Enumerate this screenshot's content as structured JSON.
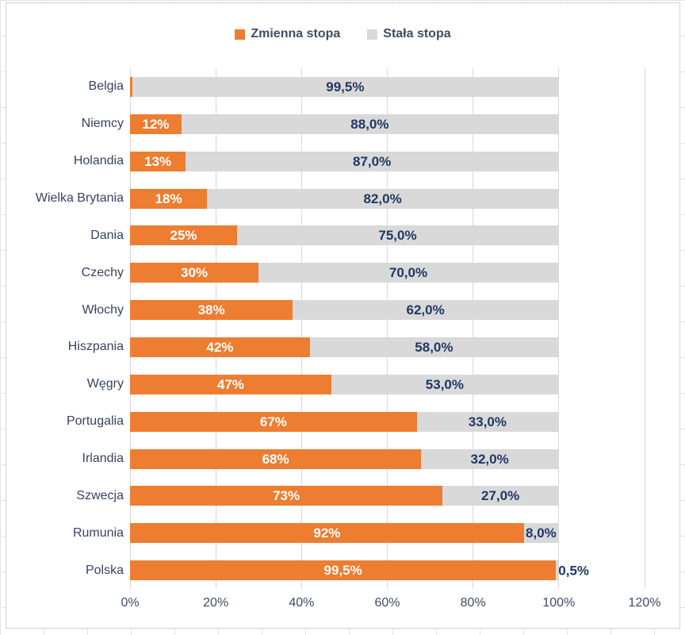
{
  "legend": {
    "items": [
      {
        "label": "Zmienna stopa",
        "color": "#ED7D31"
      },
      {
        "label": "Stała stopa",
        "color": "#D9D9D9"
      }
    ],
    "position": "top-center"
  },
  "chart_data": {
    "type": "bar",
    "orientation": "horizontal",
    "stacked": true,
    "title": "",
    "xlabel": "",
    "ylabel": "",
    "xlim": [
      0,
      120
    ],
    "grid": true,
    "x_ticks": [
      "0%",
      "20%",
      "40%",
      "60%",
      "80%",
      "100%",
      "120%"
    ],
    "categories": [
      "Belgia",
      "Niemcy",
      "Holandia",
      "Wielka Brytania",
      "Dania",
      "Czechy",
      "Włochy",
      "Hiszpania",
      "Węgry",
      "Portugalia",
      "Irlandia",
      "Szwecja",
      "Rumunia",
      "Polska"
    ],
    "series": [
      {
        "name": "Zmienna stopa",
        "color": "#ED7D31",
        "label_color": "#FFFFFF",
        "values": [
          0.5,
          12,
          13,
          18,
          25,
          30,
          38,
          42,
          47,
          67,
          68,
          73,
          92,
          99.5
        ],
        "labels": [
          "%",
          "12%",
          "13%",
          "18%",
          "25%",
          "30%",
          "38%",
          "42%",
          "47%",
          "67%",
          "68%",
          "73%",
          "92%",
          "99,5%"
        ]
      },
      {
        "name": "Stała stopa",
        "color": "#D9D9D9",
        "label_color": "#1F3864",
        "values": [
          99.5,
          88,
          87,
          82,
          75,
          70,
          62,
          58,
          53,
          33,
          32,
          27,
          8,
          0.5
        ],
        "labels": [
          "99,5%",
          "88,0%",
          "87,0%",
          "82,0%",
          "75,0%",
          "70,0%",
          "62,0%",
          "58,0%",
          "53,0%",
          "33,0%",
          "32,0%",
          "27,0%",
          "8,0%",
          "0,5%"
        ]
      }
    ],
    "gridline_color": "#D9D9D9",
    "axis_text_color": "#3F4C63"
  }
}
